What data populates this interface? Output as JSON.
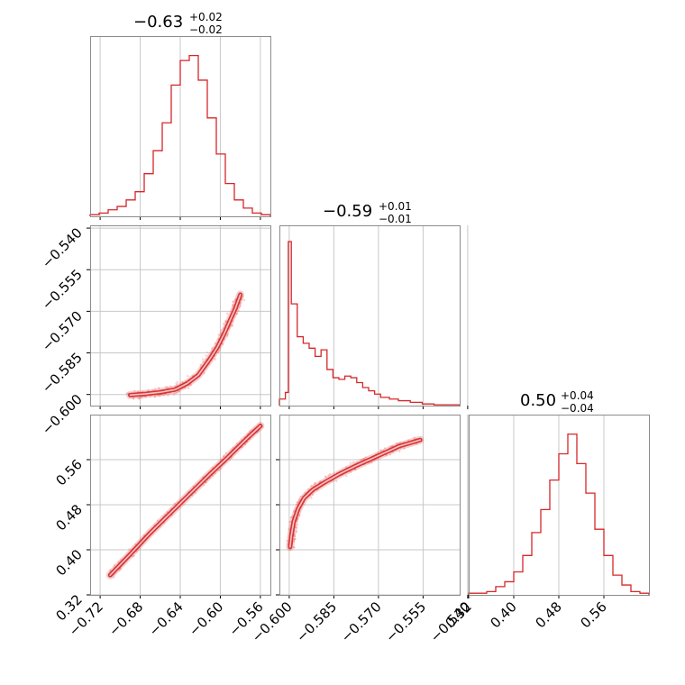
{
  "colors": {
    "series": "#d62728",
    "grid": "#c8c8c8",
    "frame": "#8c8c8c",
    "point": "#f4a3a3"
  },
  "chart_data": [
    {
      "type": "histogram",
      "id": "hist-p0",
      "title": {
        "main": "−0.63",
        "sup": "+0.02",
        "sub": "−0.02"
      },
      "xlim": [
        -0.73,
        -0.55
      ],
      "bins": [
        -0.73,
        -0.721,
        -0.712,
        -0.703,
        -0.694,
        -0.685,
        -0.676,
        -0.667,
        -0.658,
        -0.649,
        -0.64,
        -0.631,
        -0.622,
        -0.613,
        -0.604,
        -0.595,
        -0.586,
        -0.577,
        -0.568,
        -0.559,
        -0.55
      ],
      "counts": [
        0.01,
        0.02,
        0.04,
        0.06,
        0.1,
        0.15,
        0.26,
        0.4,
        0.57,
        0.8,
        0.95,
        0.98,
        0.83,
        0.6,
        0.38,
        0.2,
        0.1,
        0.05,
        0.02,
        0.01
      ]
    },
    {
      "type": "scatter-contour",
      "id": "p0-p1",
      "xlim": [
        -0.73,
        -0.55
      ],
      "ylim": [
        -0.604,
        -0.539
      ],
      "yticks": [
        "−0.540",
        "−0.555",
        "−0.570",
        "−0.585",
        "−0.600"
      ],
      "ytick_values": [
        -0.54,
        -0.555,
        -0.57,
        -0.585,
        -0.6
      ],
      "relation_x": [
        -0.69,
        -0.675,
        -0.66,
        -0.645,
        -0.633,
        -0.622,
        -0.612,
        -0.603,
        -0.596,
        -0.59,
        -0.585,
        -0.58
      ],
      "relation_y": [
        -0.6002,
        -0.5998,
        -0.5992,
        -0.5982,
        -0.596,
        -0.593,
        -0.588,
        -0.583,
        -0.578,
        -0.573,
        -0.569,
        -0.564
      ]
    },
    {
      "type": "histogram",
      "id": "hist-p1",
      "title": {
        "main": "−0.59",
        "sup": "+0.01",
        "sub": "−0.01"
      },
      "xlim": [
        -0.6033,
        -0.5427
      ],
      "bins": [
        -0.6033,
        -0.6013,
        -0.6003,
        -0.5993,
        -0.5973,
        -0.5953,
        -0.5933,
        -0.5913,
        -0.5893,
        -0.5873,
        -0.5853,
        -0.5833,
        -0.5813,
        -0.5793,
        -0.5773,
        -0.5753,
        -0.5733,
        -0.5713,
        -0.5693,
        -0.5663,
        -0.5633,
        -0.5593,
        -0.5553,
        -0.5513,
        -0.5427
      ],
      "counts": [
        0.04,
        0.08,
        1.0,
        0.62,
        0.42,
        0.38,
        0.35,
        0.3,
        0.34,
        0.22,
        0.17,
        0.16,
        0.18,
        0.17,
        0.14,
        0.11,
        0.09,
        0.07,
        0.05,
        0.04,
        0.03,
        0.02,
        0.01,
        0.005
      ]
    },
    {
      "type": "scatter-contour",
      "id": "p0-p2",
      "xlim": [
        -0.73,
        -0.55
      ],
      "ylim": [
        0.32,
        0.64
      ],
      "yticks": [
        "0.56",
        "0.48",
        "0.40",
        "0.32"
      ],
      "ytick_values": [
        0.56,
        0.48,
        0.4,
        0.32
      ],
      "xticks": [
        "−0.72",
        "−0.68",
        "−0.64",
        "−0.60",
        "−0.56"
      ],
      "xtick_values": [
        -0.72,
        -0.68,
        -0.64,
        -0.6,
        -0.56
      ],
      "relation_x": [
        -0.71,
        -0.69,
        -0.67,
        -0.65,
        -0.63,
        -0.61,
        -0.595,
        -0.575,
        -0.56
      ],
      "relation_y": [
        0.355,
        0.392,
        0.43,
        0.465,
        0.5,
        0.535,
        0.56,
        0.595,
        0.62
      ]
    },
    {
      "type": "scatter-contour",
      "id": "p1-p2",
      "xlim": [
        -0.6033,
        -0.5427
      ],
      "ylim": [
        0.32,
        0.64
      ],
      "xticks": [
        "−0.600",
        "−0.585",
        "−0.570",
        "−0.555",
        "−0.540"
      ],
      "xtick_values": [
        -0.6,
        -0.585,
        -0.57,
        -0.555,
        -0.54
      ],
      "relation_x": [
        -0.5997,
        -0.5993,
        -0.5985,
        -0.597,
        -0.595,
        -0.592,
        -0.588,
        -0.583,
        -0.578,
        -0.573,
        -0.568,
        -0.563,
        -0.556
      ],
      "relation_y": [
        0.405,
        0.425,
        0.45,
        0.473,
        0.492,
        0.507,
        0.52,
        0.535,
        0.548,
        0.56,
        0.572,
        0.584,
        0.595
      ]
    },
    {
      "type": "histogram",
      "id": "hist-p2",
      "title": {
        "main": "0.50",
        "sup": "+0.04",
        "sub": "−0.04"
      },
      "xlim": [
        0.32,
        0.64
      ],
      "xticks": [
        "0.32",
        "0.40",
        "0.48",
        "0.56"
      ],
      "xtick_values": [
        0.32,
        0.4,
        0.48,
        0.56
      ],
      "bins": [
        0.32,
        0.336,
        0.352,
        0.368,
        0.384,
        0.4,
        0.416,
        0.432,
        0.448,
        0.464,
        0.48,
        0.496,
        0.512,
        0.528,
        0.544,
        0.56,
        0.576,
        0.592,
        0.608,
        0.624,
        0.64
      ],
      "counts": [
        0.01,
        0.01,
        0.02,
        0.05,
        0.08,
        0.14,
        0.24,
        0.38,
        0.52,
        0.7,
        0.86,
        0.98,
        0.8,
        0.62,
        0.4,
        0.24,
        0.12,
        0.06,
        0.02,
        0.01
      ]
    }
  ]
}
